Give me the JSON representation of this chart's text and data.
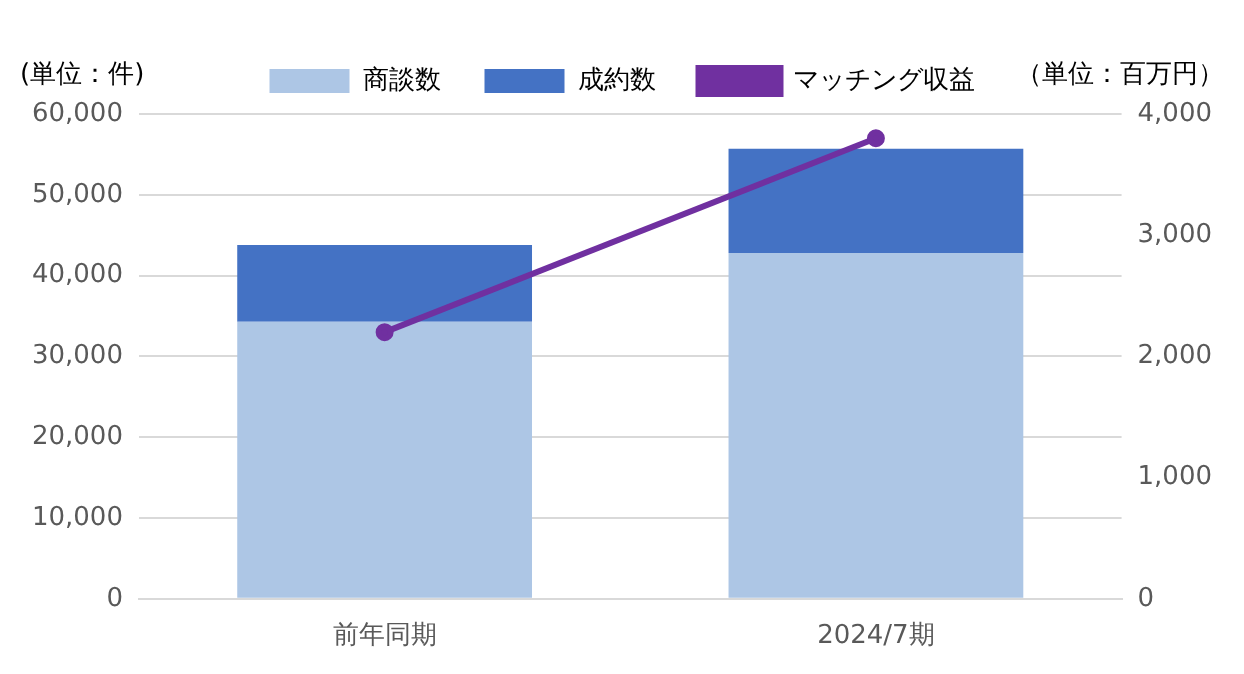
{
  "chart_data": {
    "type": "bar",
    "stacked": true,
    "categories": [
      "前年同期",
      "2024/7期"
    ],
    "series": [
      {
        "name": "商談数",
        "color": "#adc6e5",
        "values": [
          34300,
          42800
        ]
      },
      {
        "name": "成約数",
        "color": "#4472c4",
        "values": [
          9500,
          12900
        ]
      },
      {
        "name": "マッチング収益",
        "type": "line",
        "axis": "y2",
        "color": "#7030a0",
        "values": [
          2200,
          3800
        ]
      }
    ],
    "ylim": [
      0,
      60000
    ],
    "yticks": [
      {
        "value": 0,
        "label": "0"
      },
      {
        "value": 10000,
        "label": "10,000"
      },
      {
        "value": 20000,
        "label": "20,000"
      },
      {
        "value": 30000,
        "label": "30,000"
      },
      {
        "value": 40000,
        "label": "40,000"
      },
      {
        "value": 50000,
        "label": "50,000"
      },
      {
        "value": 60000,
        "label": "60,000"
      }
    ],
    "y2lim": [
      0,
      4000
    ],
    "y2ticks": [
      {
        "value": 0,
        "label": "0"
      },
      {
        "value": 1000,
        "label": "1,000"
      },
      {
        "value": 2000,
        "label": "2,000"
      },
      {
        "value": 3000,
        "label": "3,000"
      },
      {
        "value": 4000,
        "label": "4,000"
      }
    ],
    "annotations": [
      "(単位：件)",
      "（単位：百万円）"
    ],
    "grid": "y",
    "legend": "top",
    "marker": "circle",
    "line_style": "solid"
  }
}
